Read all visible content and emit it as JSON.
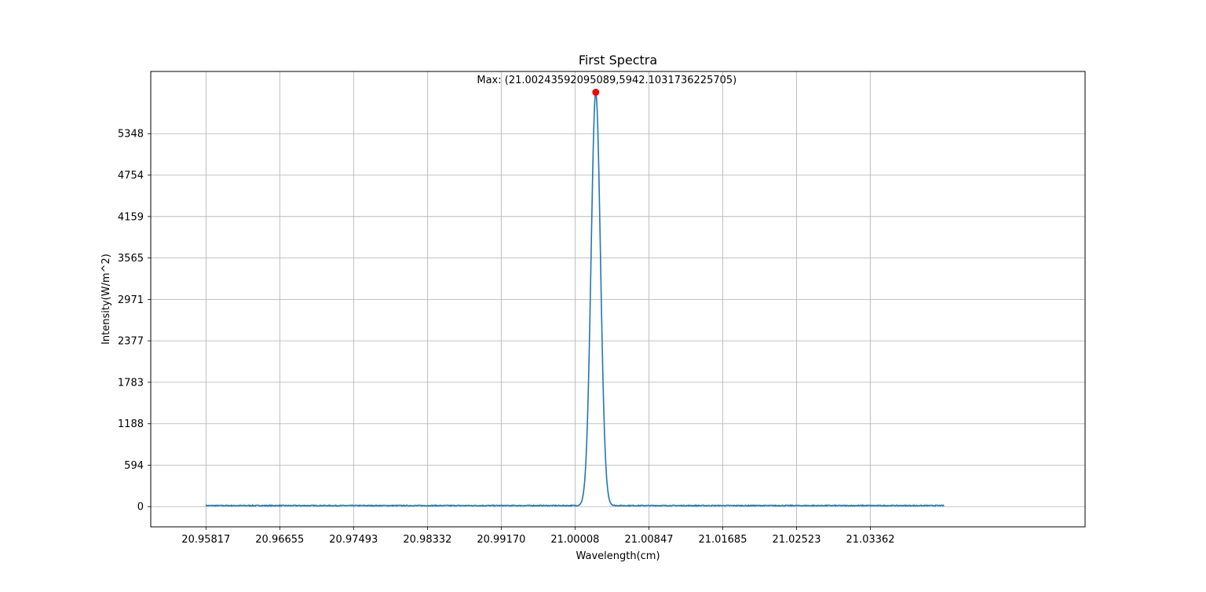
{
  "chart_data": {
    "type": "line",
    "title": "First Spectra",
    "xlabel": "Wavelength(cm)",
    "ylabel": "Intensity(W/m^2)",
    "xlim": [
      20.9519,
      21.058
    ],
    "ylim": [
      -290,
      6240
    ],
    "x_ticks": [
      "20.95817",
      "20.96655",
      "20.97493",
      "20.98332",
      "20.99170",
      "21.00008",
      "21.00847",
      "21.01685",
      "21.02523",
      "21.03362"
    ],
    "y_ticks": [
      "0",
      "594",
      "1188",
      "1783",
      "2377",
      "2971",
      "3565",
      "4159",
      "4754",
      "5348"
    ],
    "grid": true,
    "series": [
      {
        "type": "line",
        "color": "#1f77b4",
        "x_range": [
          20.95817,
          21.042
        ],
        "peak": {
          "x": 21.00243592095089,
          "y": 5942.1031736225705,
          "fwhm": 0.00125
        },
        "baseline": 15,
        "noise_amplitude": 6
      }
    ],
    "max_point": {
      "x": 21.00243592095089,
      "y": 5942.1031736225705,
      "color": "#ff0000",
      "label": "Max: (21.00243592095089,5942.1031736225705)"
    }
  }
}
